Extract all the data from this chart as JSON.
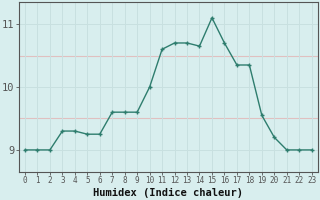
{
  "x": [
    0,
    1,
    2,
    3,
    4,
    5,
    6,
    7,
    8,
    9,
    10,
    11,
    12,
    13,
    14,
    15,
    16,
    17,
    18,
    19,
    20,
    21,
    22,
    23
  ],
  "y": [
    9,
    9,
    9,
    9.3,
    9.3,
    9.25,
    9.25,
    9.6,
    9.6,
    9.6,
    10.0,
    10.6,
    10.7,
    10.7,
    10.65,
    11.1,
    10.7,
    10.35,
    10.35,
    9.55,
    9.2,
    9.0,
    9.0,
    9.0
  ],
  "line_color": "#2e7d6e",
  "marker_color": "#2e7d6e",
  "bg_color": "#d8eeee",
  "grid_h_color": "#c8e0e0",
  "grid_v_color": "#c8e0e0",
  "grid_pink_color": "#e0c0c0",
  "xlabel": "Humidex (Indice chaleur)",
  "yticks": [
    9,
    10,
    11
  ],
  "xticks": [
    0,
    1,
    2,
    3,
    4,
    5,
    6,
    7,
    8,
    9,
    10,
    11,
    12,
    13,
    14,
    15,
    16,
    17,
    18,
    19,
    20,
    21,
    22,
    23
  ],
  "ylim": [
    8.65,
    11.35
  ],
  "xlim": [
    -0.5,
    23.5
  ]
}
